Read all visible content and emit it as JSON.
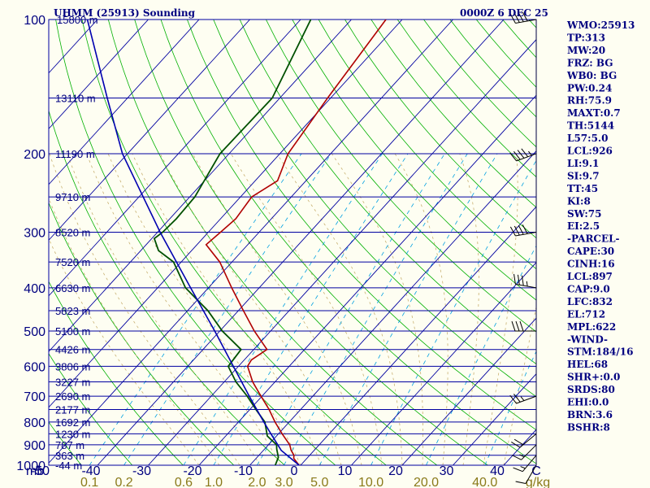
{
  "header": {
    "title": "UHMM (25913) Sounding",
    "valid": "0000Z  6 DEC 25"
  },
  "indices": [
    "WMO:25913",
    "TP:313",
    "MW:20",
    "FRZ: BG",
    "WB0: BG",
    "PW:0.24",
    "RH:75.9",
    "MAXT:0.7",
    "TH:5144",
    "L57:5.0",
    "LCL:926",
    "LI:9.1",
    "SI:9.7",
    "TT:45",
    "KI:8",
    "SW:75",
    "EI:2.5",
    "-PARCEL-",
    "CAPE:30",
    "CINH:16",
    "LCL:897",
    "CAP:9.0",
    "LFC:832",
    "EL:712",
    "MPL:622",
    "-WIND-",
    "STM:184/16",
    "HEL:68",
    "SHR+:0.0",
    "SRDS:80",
    "EHI:0.0",
    "BRN:3.6",
    "BSHR:8"
  ],
  "colors": {
    "background": "#fefef2",
    "isobar": "#0000a0",
    "isotherm": "#0000a0",
    "dry_adiabat": "#00b000",
    "moist_adiabat": "#c8b070",
    "mixing_ratio": "#00a0e0",
    "temperature": "#b00000",
    "dewpoint": "#005000",
    "parcel": "#0000b0",
    "text": "#000080",
    "mixing_ratio_text": "#8a7a1a",
    "wind_barb": "#000000"
  },
  "chart_data": {
    "type": "line",
    "title": "UHMM (25913) Sounding",
    "x_axis": {
      "unit": "C",
      "range": [
        -50,
        50
      ],
      "ticks": [
        -50,
        -40,
        -30,
        -20,
        -10,
        0,
        10,
        20,
        30,
        40
      ],
      "tick_labels": [
        "-50",
        "-40",
        "-30",
        "-20",
        "-10",
        "0",
        "10",
        "20",
        "30",
        "40"
      ],
      "unit_label": "C"
    },
    "y_axis": {
      "unit_label": "mb",
      "scale": "log",
      "range": [
        1000,
        100
      ],
      "pressure_labels": [
        "100",
        "200",
        "300",
        "400",
        "500",
        "600",
        "700",
        "800",
        "900",
        "1000"
      ]
    },
    "height_levels": [
      {
        "p": 150,
        "h": "13110 m"
      },
      {
        "p": 200,
        "h": "11190 m"
      },
      {
        "p": 250,
        "h": "9710 m"
      },
      {
        "p": 300,
        "h": "8520 m"
      },
      {
        "p": 350,
        "h": "7520 m"
      },
      {
        "p": 400,
        "h": "6630 m"
      },
      {
        "p": 450,
        "h": "5823 m"
      },
      {
        "p": 500,
        "h": "5100 m"
      },
      {
        "p": 550,
        "h": "4426 m"
      },
      {
        "p": 600,
        "h": "3806 m"
      },
      {
        "p": 650,
        "h": "3227 m"
      },
      {
        "p": 700,
        "h": "2690 m"
      },
      {
        "p": 750,
        "h": "2177 m"
      },
      {
        "p": 800,
        "h": "1692 m"
      },
      {
        "p": 850,
        "h": "1230 m"
      },
      {
        "p": 900,
        "h": "787 m"
      },
      {
        "p": 950,
        "h": "363 m"
      },
      {
        "p": 1000,
        "h": "-44 m"
      }
    ],
    "top_height_label": "15800 m",
    "mixing_ratio_labels": [
      "0.1",
      "0.2",
      "0.6",
      "1.0",
      "2.0",
      "3.0",
      "5.0",
      "10.0",
      "20.0",
      "40.0",
      "g/kg"
    ],
    "mixing_ratio_values": [
      0.1,
      0.2,
      0.6,
      1.0,
      2.0,
      3.0,
      5.0,
      10.0,
      20.0,
      40.0
    ],
    "series": [
      {
        "name": "Temperature",
        "points": [
          {
            "p": 1000,
            "t": -0.3
          },
          {
            "p": 980,
            "t": -1.6
          },
          {
            "p": 965,
            "t": -2.6
          },
          {
            "p": 950,
            "t": -3.1
          },
          {
            "p": 925,
            "t": -4.6
          },
          {
            "p": 900,
            "t": -5.8
          },
          {
            "p": 850,
            "t": -9.3
          },
          {
            "p": 800,
            "t": -12.8
          },
          {
            "p": 750,
            "t": -16.2
          },
          {
            "p": 700,
            "t": -20.2
          },
          {
            "p": 650,
            "t": -24.4
          },
          {
            "p": 600,
            "t": -28.2
          },
          {
            "p": 580,
            "t": -28.6
          },
          {
            "p": 550,
            "t": -27.4
          },
          {
            "p": 500,
            "t": -33.2
          },
          {
            "p": 450,
            "t": -39.0
          },
          {
            "p": 400,
            "t": -45.4
          },
          {
            "p": 350,
            "t": -52.4
          },
          {
            "p": 320,
            "t": -58.2
          },
          {
            "p": 300,
            "t": -57.6
          },
          {
            "p": 280,
            "t": -57.0
          },
          {
            "p": 250,
            "t": -57.8
          },
          {
            "p": 230,
            "t": -55.6
          },
          {
            "p": 200,
            "t": -58.4
          },
          {
            "p": 150,
            "t": -60.6
          },
          {
            "p": 100,
            "t": -63.2
          }
        ]
      },
      {
        "name": "Dewpoint",
        "points": [
          {
            "p": 1000,
            "t": -5.0
          },
          {
            "p": 960,
            "t": -5.8
          },
          {
            "p": 920,
            "t": -7.6
          },
          {
            "p": 900,
            "t": -8.4
          },
          {
            "p": 860,
            "t": -11.8
          },
          {
            "p": 800,
            "t": -14.8
          },
          {
            "p": 750,
            "t": -18.8
          },
          {
            "p": 700,
            "t": -22.9
          },
          {
            "p": 650,
            "t": -27.7
          },
          {
            "p": 600,
            "t": -32.0
          },
          {
            "p": 550,
            "t": -32.5
          },
          {
            "p": 500,
            "t": -39.5
          },
          {
            "p": 450,
            "t": -46.0
          },
          {
            "p": 400,
            "t": -54.5
          },
          {
            "p": 350,
            "t": -61.5
          },
          {
            "p": 330,
            "t": -66.5
          },
          {
            "p": 310,
            "t": -69.5
          },
          {
            "p": 300,
            "t": -69.0
          },
          {
            "p": 280,
            "t": -68.7
          },
          {
            "p": 250,
            "t": -69.0
          },
          {
            "p": 200,
            "t": -71.8
          },
          {
            "p": 150,
            "t": -71.5
          },
          {
            "p": 100,
            "t": -78.0
          }
        ]
      },
      {
        "name": "Parcel",
        "points": [
          {
            "p": 1000,
            "t": -0.3
          },
          {
            "p": 926,
            "t": -6.5
          },
          {
            "p": 850,
            "t": -11.5
          },
          {
            "p": 800,
            "t": -15.0
          },
          {
            "p": 700,
            "t": -22.5
          },
          {
            "p": 600,
            "t": -31.0
          },
          {
            "p": 500,
            "t": -41.0
          },
          {
            "p": 400,
            "t": -53.5
          },
          {
            "p": 300,
            "t": -69.5
          },
          {
            "p": 200,
            "t": -91.0
          },
          {
            "p": 150,
            "t": -104.0
          },
          {
            "p": 100,
            "t": -122.0
          }
        ]
      }
    ],
    "winds": [
      {
        "p": 1000,
        "dir": 210,
        "spd": 10
      },
      {
        "p": 950,
        "dir": 220,
        "spd": 15
      },
      {
        "p": 900,
        "dir": 225,
        "spd": 15
      },
      {
        "p": 850,
        "dir": 230,
        "spd": 20
      },
      {
        "p": 700,
        "dir": 250,
        "spd": 25
      },
      {
        "p": 500,
        "dir": 270,
        "spd": 30
      },
      {
        "p": 400,
        "dir": 280,
        "spd": 35
      },
      {
        "p": 300,
        "dir": 260,
        "spd": 40
      },
      {
        "p": 200,
        "dir": 250,
        "spd": 45
      },
      {
        "p": 100,
        "dir": 260,
        "spd": 40
      }
    ]
  }
}
